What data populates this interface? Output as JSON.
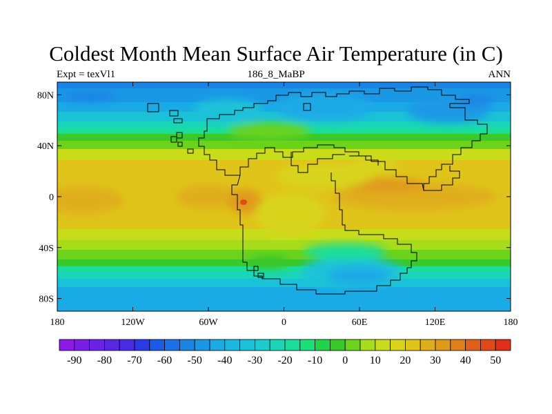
{
  "title": "Coldest Month Mean Surface Air Temperature (in C)",
  "left_label": "Expt = texVl1",
  "center_label": "186_8_MaBP",
  "right_label": "ANN",
  "map": {
    "projection": "cylindrical-equidistant",
    "lon_range": [
      -180,
      180
    ],
    "lat_range": [
      -90,
      90
    ],
    "lat_ticks": [
      {
        "value": 80,
        "label": "80N"
      },
      {
        "value": 40,
        "label": "40N"
      },
      {
        "value": 0,
        "label": "0"
      },
      {
        "value": -40,
        "label": "40S"
      },
      {
        "value": -80,
        "label": "80S"
      }
    ],
    "lon_ticks": [
      {
        "value": -180,
        "label": "180"
      },
      {
        "value": -120,
        "label": "120W"
      },
      {
        "value": -60,
        "label": "60W"
      },
      {
        "value": 0,
        "label": "0"
      },
      {
        "value": 60,
        "label": "60E"
      },
      {
        "value": 120,
        "label": "120E"
      },
      {
        "value": 180,
        "label": "180"
      }
    ],
    "continent_outline_color": "#000000"
  },
  "colorbar": {
    "levels": [
      -95,
      -90,
      -85,
      -80,
      -75,
      -70,
      -65,
      -60,
      -55,
      -50,
      -45,
      -40,
      -35,
      -30,
      -25,
      -20,
      -15,
      -10,
      -5,
      0,
      5,
      10,
      15,
      20,
      25,
      30,
      35,
      40,
      45,
      50,
      55
    ],
    "colors": [
      "#8b1ae6",
      "#7a1ee6",
      "#6a22e6",
      "#5a26e6",
      "#4a2ae6",
      "#2a3ae6",
      "#1a5ae6",
      "#1a70e6",
      "#1a84e6",
      "#1a98e6",
      "#1aaae6",
      "#1ab8e0",
      "#1ac2d8",
      "#1acccc",
      "#1ad6b8",
      "#1ade9a",
      "#1ae07a",
      "#20d44a",
      "#3ac82a",
      "#6cd21a",
      "#a8dc1a",
      "#c8dc1a",
      "#d8d41a",
      "#e0c41a",
      "#e0ae1a",
      "#e09a1a",
      "#e07e1a",
      "#e0601a",
      "#e04a1a",
      "#e0301a"
    ],
    "labels": [
      {
        "value": -90,
        "label": "-90"
      },
      {
        "value": -80,
        "label": "-80"
      },
      {
        "value": -70,
        "label": "-70"
      },
      {
        "value": -60,
        "label": "-60"
      },
      {
        "value": -50,
        "label": "-50"
      },
      {
        "value": -40,
        "label": "-40"
      },
      {
        "value": -30,
        "label": "-30"
      },
      {
        "value": -20,
        "label": "-20"
      },
      {
        "value": -10,
        "label": "-10"
      },
      {
        "value": 0,
        "label": "0"
      },
      {
        "value": 10,
        "label": "10"
      },
      {
        "value": 20,
        "label": "20"
      },
      {
        "value": 30,
        "label": "30"
      },
      {
        "value": 40,
        "label": "40"
      },
      {
        "value": 50,
        "label": "50"
      }
    ]
  }
}
